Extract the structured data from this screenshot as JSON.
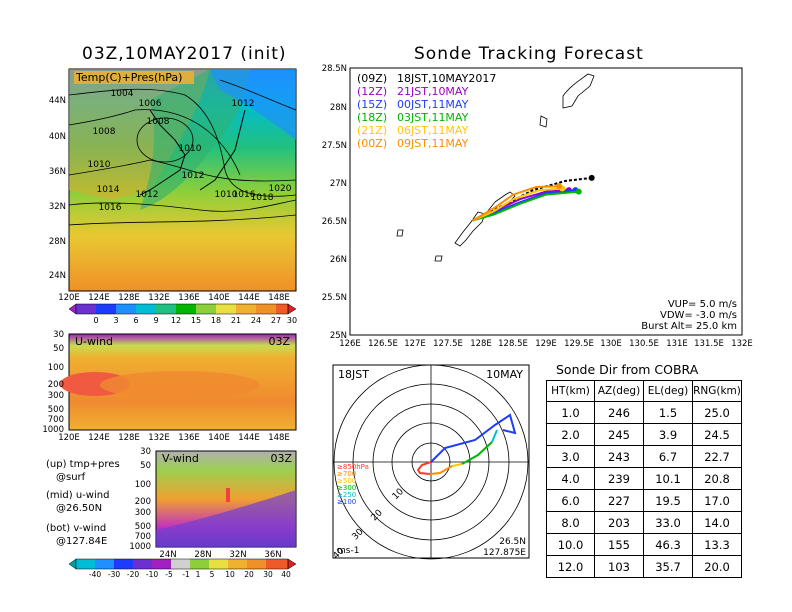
{
  "left": {
    "title": "03Z,10MAY2017 (init)",
    "map_label": "Temp(C)+Pres(hPa)",
    "lat_ticks": [
      "44N",
      "40N",
      "36N",
      "32N",
      "28N",
      "24N"
    ],
    "lon_ticks": [
      "120E",
      "124E",
      "128E",
      "132E",
      "136E",
      "140E",
      "144E",
      "148E"
    ],
    "isobar_labels": [
      "1004",
      "1006",
      "1008",
      "1008",
      "1010",
      "1010",
      "1012",
      "1012",
      "1014",
      "1012",
      "1016",
      "1016",
      "1018",
      "1020",
      "1010"
    ],
    "temp_colorbar": [
      "0",
      "3",
      "6",
      "9",
      "12",
      "15",
      "18",
      "21",
      "24",
      "27",
      "30"
    ],
    "uwind": {
      "label": "U-wind",
      "time": "03Z",
      "levels": [
        "30",
        "50",
        "100",
        "200",
        "300",
        "500",
        "700",
        "1000"
      ]
    },
    "vwind": {
      "label": "V-wind",
      "time": "03Z",
      "levels": [
        "30",
        "50",
        "100",
        "200",
        "300",
        "500",
        "700",
        "1000"
      ],
      "lat_ticks": [
        "24N",
        "28N",
        "32N",
        "36N"
      ]
    },
    "wind_colorbar": [
      "-40",
      "-30",
      "-20",
      "-10",
      "-5",
      "-1",
      "1",
      "5",
      "10",
      "20",
      "30",
      "40"
    ],
    "notes": [
      {
        "a": "(up) tmp+pres",
        "b": "@surf"
      },
      {
        "a": "(mid) u-wind",
        "b": "@26.50N"
      },
      {
        "a": "(bot) v-wind",
        "b": "@127.84E"
      }
    ]
  },
  "track": {
    "title": "Sonde Tracking Forecast",
    "lat_ticks": [
      "28.5N",
      "28N",
      "27.5N",
      "27N",
      "26.5N",
      "26N",
      "25.5N",
      "25N"
    ],
    "lon_ticks": [
      "126E",
      "126.5E",
      "127E",
      "127.5E",
      "128E",
      "128.5E",
      "129E",
      "129.5E",
      "130E",
      "130.5E",
      "131E",
      "131.5E",
      "132E"
    ],
    "legend": [
      {
        "utc": "(09Z)",
        "jst": "18JST,10MAY2017",
        "color": "#000000"
      },
      {
        "utc": "(12Z)",
        "jst": "21JST,10MAY",
        "color": "#9b00c8"
      },
      {
        "utc": "(15Z)",
        "jst": "00JST,11MAY",
        "color": "#1e3cff"
      },
      {
        "utc": "(18Z)",
        "jst": "03JST,11MAY",
        "color": "#00b400"
      },
      {
        "utc": "(21Z)",
        "jst": "06JST,11MAY",
        "color": "#ffc800"
      },
      {
        "utc": "(00Z)",
        "jst": "09JST,11MAY",
        "color": "#ff8c00"
      }
    ],
    "params": [
      "VUP= 5.0 m/s",
      "VDW= -3.0 m/s",
      "Burst Alt= 25.0 km"
    ]
  },
  "hodo": {
    "left_title": "18JST",
    "right_title": "10MAY",
    "unit": "ms-1",
    "lat": "26.5N",
    "lon": "127.875E",
    "ring_labels": [
      "10",
      "20",
      "30",
      "40"
    ],
    "levels": [
      {
        "t": "≥850hPa",
        "c": "#ff3c28"
      },
      {
        "t": "≥700",
        "c": "#ff8c00"
      },
      {
        "t": "≥500",
        "c": "#ffc800"
      },
      {
        "t": "≥300",
        "c": "#00b400"
      },
      {
        "t": "≥250",
        "c": "#00bcd4"
      },
      {
        "t": "≥100",
        "c": "#1e3cff"
      }
    ]
  },
  "table": {
    "title": "Sonde Dir from COBRA",
    "headers": [
      "HT(km)",
      "AZ(deg)",
      "EL(deg)",
      "RNG(km)"
    ],
    "rows": [
      [
        "1.0",
        "246",
        "1.5",
        "25.0"
      ],
      [
        "2.0",
        "245",
        "3.9",
        "24.5"
      ],
      [
        "3.0",
        "243",
        "6.7",
        "22.7"
      ],
      [
        "4.0",
        "239",
        "10.1",
        "20.8"
      ],
      [
        "6.0",
        "227",
        "19.5",
        "17.0"
      ],
      [
        "8.0",
        "203",
        "33.0",
        "14.0"
      ],
      [
        "10.0",
        "155",
        "46.3",
        "13.3"
      ],
      [
        "12.0",
        "103",
        "35.7",
        "20.0"
      ]
    ]
  },
  "chart_data": [
    {
      "type": "line",
      "title": "Sonde Tracking Forecast",
      "xlim": [
        126,
        132
      ],
      "ylim": [
        25,
        28.5
      ],
      "series": [
        {
          "name": "(09Z) 18JST,10MAY2017",
          "x": [
            127.875,
            128.3,
            128.8,
            129.3,
            129.7
          ],
          "y": [
            26.5,
            26.68,
            26.9,
            27.02,
            27.06
          ]
        },
        {
          "name": "(12Z) 21JST,10MAY",
          "x": [
            127.875,
            128.2,
            128.6,
            129.0,
            129.35
          ],
          "y": [
            26.5,
            26.62,
            26.78,
            26.88,
            26.9
          ]
        },
        {
          "name": "(15Z) 00JST,11MAY",
          "x": [
            127.875,
            128.2,
            128.6,
            129.0,
            129.45
          ],
          "y": [
            26.5,
            26.6,
            26.74,
            26.86,
            26.9
          ]
        },
        {
          "name": "(18Z) 03JST,11MAY",
          "x": [
            127.875,
            128.2,
            128.6,
            129.0,
            129.5
          ],
          "y": [
            26.5,
            26.58,
            26.72,
            26.84,
            26.88
          ]
        },
        {
          "name": "(21Z) 06JST,11MAY",
          "x": [
            127.875,
            128.2,
            128.5,
            128.9,
            129.25
          ],
          "y": [
            26.5,
            26.62,
            26.78,
            26.9,
            26.92
          ]
        },
        {
          "name": "(00Z) 09JST,11MAY",
          "x": [
            127.875,
            128.2,
            128.5,
            128.85,
            129.2
          ],
          "y": [
            26.5,
            26.66,
            26.84,
            26.94,
            26.95
          ]
        }
      ]
    },
    {
      "type": "table",
      "title": "Sonde Dir from COBRA",
      "columns": [
        "HT(km)",
        "AZ(deg)",
        "EL(deg)",
        "RNG(km)"
      ],
      "rows": [
        [
          1.0,
          246,
          1.5,
          25.0
        ],
        [
          2.0,
          245,
          3.9,
          24.5
        ],
        [
          3.0,
          243,
          6.7,
          22.7
        ],
        [
          4.0,
          239,
          10.1,
          20.8
        ],
        [
          6.0,
          227,
          19.5,
          17.0
        ],
        [
          8.0,
          203,
          33.0,
          14.0
        ],
        [
          10.0,
          155,
          46.3,
          13.3
        ],
        [
          12.0,
          103,
          35.7,
          20.0
        ]
      ]
    }
  ]
}
